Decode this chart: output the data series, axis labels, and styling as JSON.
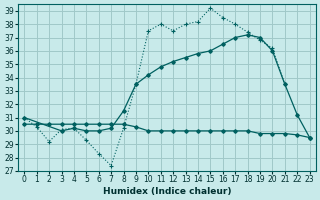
{
  "xlabel": "Humidex (Indice chaleur)",
  "background_color": "#c8eaea",
  "grid_color": "#a0c8c8",
  "line_color": "#006060",
  "xlim": [
    -0.5,
    23.5
  ],
  "ylim": [
    27,
    39.5
  ],
  "yticks": [
    27,
    28,
    29,
    30,
    31,
    32,
    33,
    34,
    35,
    36,
    37,
    38,
    39
  ],
  "xticks": [
    0,
    1,
    2,
    3,
    4,
    5,
    6,
    7,
    8,
    9,
    10,
    11,
    12,
    13,
    14,
    15,
    16,
    17,
    18,
    19,
    20,
    21,
    22,
    23
  ],
  "s1x": [
    0,
    1,
    2,
    3,
    4,
    5,
    6,
    7,
    8,
    9,
    10,
    11,
    12,
    13,
    14,
    15,
    16,
    17,
    18,
    19,
    20,
    21
  ],
  "s1y": [
    31.0,
    30.3,
    29.2,
    30.1,
    30.2,
    29.3,
    28.3,
    27.4,
    30.2,
    33.5,
    37.5,
    38.0,
    37.5,
    38.0,
    38.2,
    39.2,
    38.5,
    38.0,
    37.4,
    36.8,
    36.2,
    33.5
  ],
  "s2x": [
    0,
    1,
    2,
    3,
    4,
    5,
    6,
    7,
    8,
    9,
    10,
    11,
    12,
    13,
    14,
    15,
    16,
    17,
    18,
    19,
    20,
    21,
    22,
    23
  ],
  "s2y": [
    30.5,
    30.5,
    30.5,
    30.5,
    30.5,
    30.5,
    30.5,
    30.5,
    30.5,
    30.3,
    30.0,
    30.0,
    30.0,
    30.0,
    30.0,
    30.0,
    30.0,
    30.0,
    30.0,
    29.8,
    29.8,
    29.8,
    29.7,
    29.5
  ],
  "s3x": [
    0,
    3,
    4,
    5,
    6,
    7,
    8,
    9,
    10,
    11,
    12,
    13,
    14,
    15,
    16,
    17,
    18,
    19,
    20,
    21,
    22,
    23
  ],
  "s3y": [
    31.0,
    30.0,
    30.2,
    30.0,
    30.0,
    30.2,
    31.5,
    33.5,
    34.2,
    34.8,
    35.2,
    35.5,
    35.8,
    36.0,
    36.5,
    37.0,
    37.2,
    37.0,
    36.0,
    33.5,
    31.2,
    29.5
  ]
}
